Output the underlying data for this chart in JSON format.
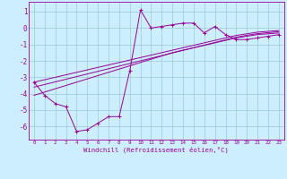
{
  "xlabel": "Windchill (Refroidissement éolien,°C)",
  "background_color": "#cceeff",
  "grid_color": "#99cccc",
  "line_color": "#990099",
  "x_data": [
    0,
    1,
    2,
    3,
    4,
    5,
    6,
    7,
    8,
    9,
    10,
    11,
    12,
    13,
    14,
    15,
    16,
    17,
    18,
    19,
    20,
    21,
    22,
    23
  ],
  "y_main": [
    -3.3,
    -4.1,
    -4.6,
    -4.8,
    -6.3,
    -6.2,
    -5.8,
    -5.4,
    -5.4,
    -2.6,
    1.1,
    0.0,
    0.1,
    0.2,
    0.3,
    0.3,
    -0.3,
    0.1,
    -0.4,
    -0.7,
    -0.7,
    -0.6,
    -0.5,
    -0.4
  ],
  "y_reg1": [
    -3.3,
    -3.15,
    -3.0,
    -2.85,
    -2.7,
    -2.55,
    -2.4,
    -2.25,
    -2.1,
    -1.95,
    -1.8,
    -1.65,
    -1.5,
    -1.35,
    -1.2,
    -1.05,
    -0.9,
    -0.75,
    -0.6,
    -0.45,
    -0.35,
    -0.25,
    -0.2,
    -0.15
  ],
  "y_reg2": [
    -3.6,
    -3.44,
    -3.28,
    -3.12,
    -2.96,
    -2.8,
    -2.64,
    -2.48,
    -2.32,
    -2.16,
    -2.0,
    -1.84,
    -1.68,
    -1.52,
    -1.36,
    -1.2,
    -1.04,
    -0.88,
    -0.72,
    -0.56,
    -0.44,
    -0.34,
    -0.28,
    -0.22
  ],
  "y_reg3": [
    -4.1,
    -3.9,
    -3.7,
    -3.5,
    -3.3,
    -3.1,
    -2.9,
    -2.7,
    -2.5,
    -2.3,
    -2.1,
    -1.9,
    -1.7,
    -1.5,
    -1.35,
    -1.2,
    -1.05,
    -0.9,
    -0.75,
    -0.6,
    -0.5,
    -0.4,
    -0.35,
    -0.3
  ],
  "xlim": [
    -0.5,
    23.5
  ],
  "ylim": [
    -6.8,
    1.6
  ],
  "yticks": [
    1,
    0,
    -1,
    -2,
    -3,
    -4,
    -5,
    -6
  ],
  "xticks": [
    0,
    1,
    2,
    3,
    4,
    5,
    6,
    7,
    8,
    9,
    10,
    11,
    12,
    13,
    14,
    15,
    16,
    17,
    18,
    19,
    20,
    21,
    22,
    23
  ]
}
